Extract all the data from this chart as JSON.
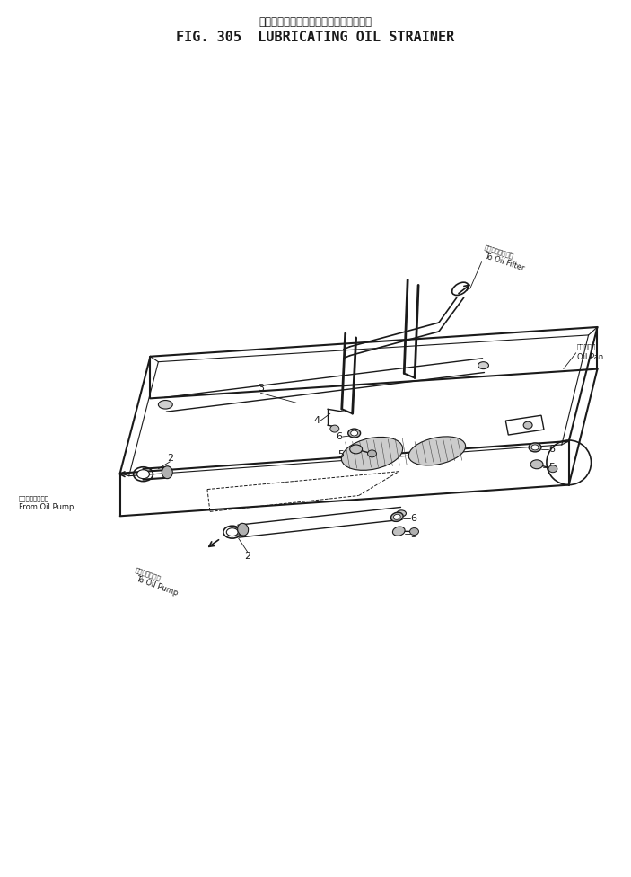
{
  "title_japanese": "ルーブリケーティングオイルストレーナ",
  "title_english": "FIG. 305  LUBRICATING OIL STRAINER",
  "bg": "#ffffff",
  "lc": "#1a1a1a",
  "note_from_pump_jp": "オイルポンプから",
  "note_from_pump_en": "From Oil Pump",
  "note_to_pump_jp": "オイルポンプへ",
  "note_to_pump_en": "To Oil Pump",
  "note_to_filter_jp": "オイルフィルタへ",
  "note_to_filter_en": "To Oil Filter",
  "note_oil_pan_jp": "オイルパン",
  "note_oil_pan_en": "Oil Pan"
}
